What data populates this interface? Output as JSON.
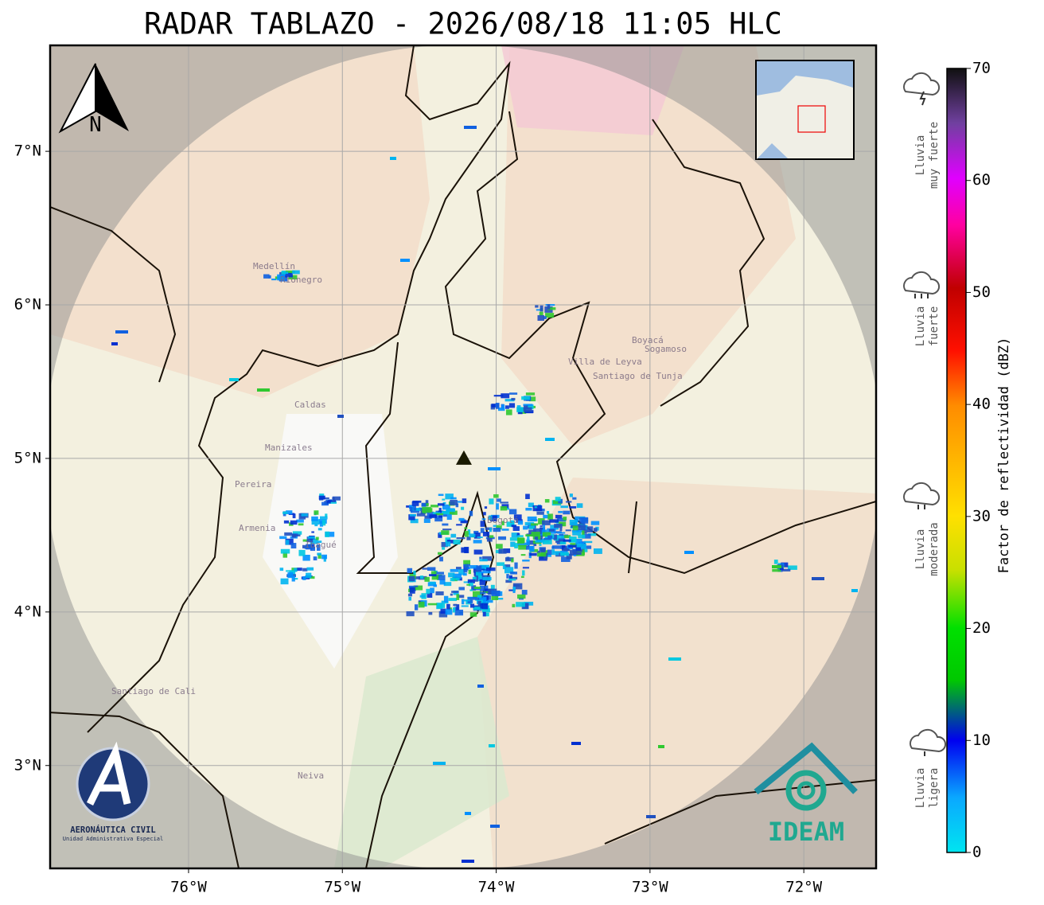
{
  "map": {
    "title": "RADAR TABLAZO - 2026/08/18 11:05 HLC",
    "lon_range": [
      -76.9,
      -71.53
    ],
    "lat_range": [
      2.33,
      7.69
    ],
    "lon_ticks": [
      {
        "value": -76,
        "label": "76°W"
      },
      {
        "value": -75,
        "label": "75°W"
      },
      {
        "value": -74,
        "label": "74°W"
      },
      {
        "value": -73,
        "label": "73°W"
      },
      {
        "value": -72,
        "label": "72°W"
      }
    ],
    "lat_ticks": [
      {
        "value": 7,
        "label": "7°N"
      },
      {
        "value": 6,
        "label": "6°N"
      },
      {
        "value": 5,
        "label": "5°N"
      },
      {
        "value": 4,
        "label": "4°N"
      },
      {
        "value": 3,
        "label": "3°N"
      }
    ],
    "radar": {
      "lon": -74.21,
      "lat": 5.0
    },
    "north": "N",
    "places": [
      "Medellín",
      "Rionegro",
      "Caldas",
      "Manizales",
      "Pereira",
      "Armenia",
      "Ibagué",
      "Bogotá",
      "Villa de Leyva",
      "Santiago de Tunja",
      "Boyacá",
      "Sogamoso",
      "Neiva",
      "Santiago de Cali"
    ],
    "colorbar": {
      "range": [
        0,
        70
      ],
      "ticks": [
        0,
        10,
        20,
        30,
        40,
        50,
        60,
        70
      ],
      "label": "Factor de reflectividad (dBZ)"
    },
    "legend": [
      {
        "lines": [
          "Lluvia",
          "muy fuerte"
        ]
      },
      {
        "lines": [
          "Lluvia",
          "fuerte"
        ]
      },
      {
        "lines": [
          "Lluvia",
          "moderada"
        ]
      },
      {
        "lines": [
          "Lluvia",
          "ligera"
        ]
      }
    ],
    "logos": {
      "aero": "AERONÁUTICA CIVIL",
      "aero_sub": "Unidad Administrativa Especial",
      "ideam": "IDEAM"
    }
  }
}
